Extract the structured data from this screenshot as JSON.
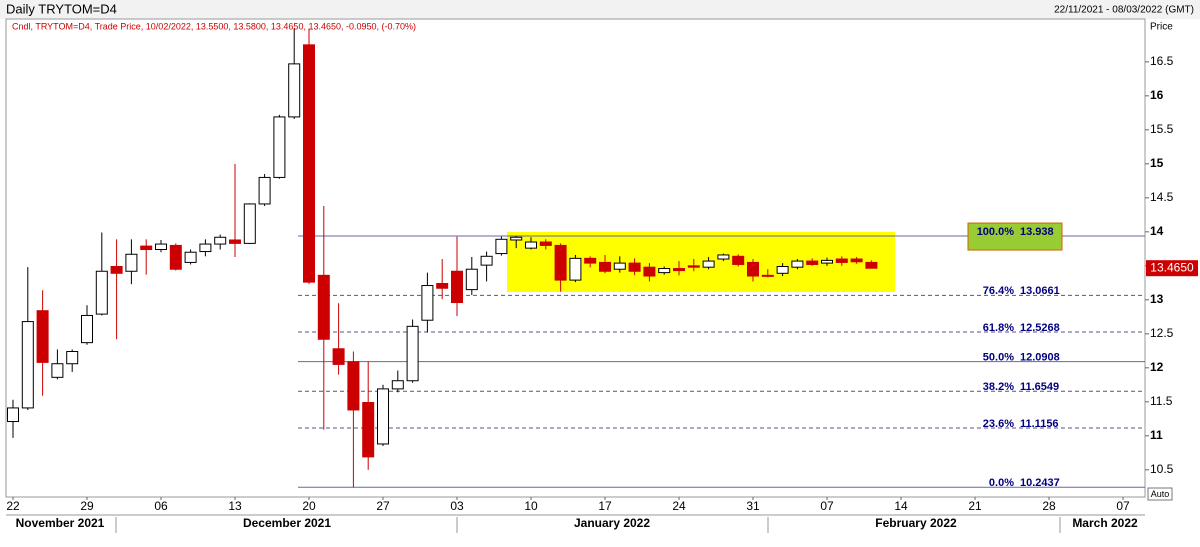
{
  "chart_data": {
    "type": "candlestick",
    "title": "Daily TRYTOM=D4",
    "date_range": "22/11/2021 - 08/03/2022 (GMT)",
    "legend_text": "Cndl, TRYTOM=D4, Trade Price, 10/02/2022, 13.5500, 13.5800, 13.4650, 13.4650, -0.0950, (-0.70%)",
    "y_axis_label": "Price",
    "scale_mode": "Auto",
    "categories": [
      "22",
      null,
      null,
      null,
      null,
      "29",
      null,
      null,
      null,
      null,
      "06",
      null,
      null,
      null,
      null,
      "13",
      null,
      null,
      null,
      null,
      "20",
      null,
      null,
      null,
      null,
      "27",
      null,
      null,
      null,
      null,
      "03",
      null,
      null,
      null,
      null,
      "10",
      null,
      null,
      null,
      null,
      "17",
      null,
      null,
      null,
      null,
      "24",
      null,
      null,
      null,
      null,
      "31",
      null,
      null,
      null,
      null,
      "07",
      null,
      null,
      null,
      null,
      "14",
      null,
      null,
      null,
      null,
      "21",
      null,
      null,
      null,
      null,
      "28",
      null,
      null,
      null,
      null,
      "07",
      null
    ],
    "months": [
      "November 2021",
      "December 2021",
      "January 2022",
      "February 2022",
      "March 2022"
    ],
    "up_color": "#ffffff",
    "down_color": "#cc0000",
    "open": [
      11.21,
      11.41,
      12.84,
      11.86,
      12.06,
      12.37,
      12.79,
      13.49,
      13.42,
      13.79,
      13.74,
      13.8,
      13.55,
      13.71,
      13.82,
      13.88,
      13.83,
      14.41,
      14.8,
      15.69,
      16.75,
      13.36,
      12.28,
      12.09,
      11.49,
      10.88,
      11.69,
      11.81,
      12.7,
      13.24,
      13.42,
      13.15,
      13.51,
      13.68,
      13.88,
      13.76,
      13.85,
      13.8,
      13.29,
      13.61,
      13.55,
      13.45,
      13.54,
      13.48,
      13.4,
      13.46,
      13.5,
      13.48,
      13.6,
      13.64,
      13.55,
      13.36,
      13.39,
      13.48,
      13.57,
      13.54,
      13.6,
      13.6,
      13.55,
      null,
      null,
      null,
      null,
      null,
      null,
      null,
      null,
      null,
      null,
      null,
      null,
      null,
      null,
      null,
      null,
      null,
      null
    ],
    "high": [
      11.53,
      13.48,
      13.14,
      12.27,
      12.27,
      12.92,
      13.99,
      13.89,
      13.89,
      13.89,
      13.88,
      13.83,
      13.74,
      13.89,
      13.96,
      15.0,
      14.42,
      14.85,
      15.72,
      16.99,
      16.99,
      14.38,
      12.95,
      12.24,
      12.09,
      11.75,
      11.96,
      12.71,
      13.4,
      13.6,
      13.93,
      13.63,
      13.71,
      13.93,
      13.938,
      13.92,
      13.89,
      13.83,
      13.66,
      13.64,
      13.66,
      13.64,
      13.61,
      13.54,
      13.49,
      13.57,
      13.6,
      13.63,
      13.68,
      13.67,
      13.6,
      13.45,
      13.54,
      13.6,
      13.61,
      13.62,
      13.64,
      13.63,
      13.58,
      null,
      null,
      null,
      null,
      null,
      null,
      null,
      null,
      null,
      null,
      null,
      null,
      null,
      null,
      null,
      null,
      null,
      null
    ],
    "low": [
      10.97,
      11.38,
      11.59,
      11.83,
      11.94,
      12.34,
      12.77,
      12.42,
      13.23,
      13.37,
      13.7,
      13.43,
      13.52,
      13.64,
      13.74,
      13.63,
      13.82,
      14.38,
      14.78,
      15.66,
      13.23,
      11.09,
      11.9,
      10.2437,
      10.5,
      10.85,
      11.64,
      11.78,
      12.52,
      13.01,
      12.76,
      13.07,
      13.27,
      13.65,
      13.76,
      13.74,
      13.74,
      13.12,
      13.26,
      13.48,
      13.39,
      13.4,
      13.36,
      13.27,
      13.37,
      13.36,
      13.42,
      13.45,
      13.57,
      13.49,
      13.27,
      13.33,
      13.35,
      13.45,
      13.5,
      13.5,
      13.5,
      13.53,
      13.465,
      null,
      null,
      null,
      null,
      null,
      null,
      null,
      null,
      null,
      null,
      null,
      null,
      null,
      null,
      null,
      null,
      null,
      null
    ],
    "close": [
      11.41,
      12.68,
      12.08,
      12.06,
      12.24,
      12.77,
      13.42,
      13.39,
      13.67,
      13.74,
      13.82,
      13.45,
      13.7,
      13.82,
      13.92,
      13.83,
      14.41,
      14.8,
      15.69,
      16.47,
      13.26,
      12.42,
      12.05,
      11.38,
      10.69,
      11.69,
      11.81,
      12.61,
      13.21,
      13.17,
      12.96,
      13.45,
      13.64,
      13.89,
      13.92,
      13.85,
      13.8,
      13.29,
      13.61,
      13.54,
      13.42,
      13.54,
      13.42,
      13.35,
      13.46,
      13.43,
      13.48,
      13.57,
      13.66,
      13.52,
      13.35,
      13.35,
      13.49,
      13.57,
      13.52,
      13.58,
      13.55,
      13.56,
      13.465,
      null,
      null,
      null,
      null,
      null,
      null,
      null,
      null,
      null,
      null,
      null,
      null,
      null,
      null,
      null,
      null,
      null,
      null
    ],
    "ylim": [
      10.1,
      17.13
    ],
    "yticks": [
      10.5,
      11,
      11.5,
      12,
      12.5,
      13,
      13.5,
      14,
      14.5,
      15,
      15.5,
      16,
      16.5
    ],
    "last_price": {
      "value": 13.465,
      "label": "13.4650"
    },
    "fibonacci": [
      {
        "label": "100.0%",
        "value": 13.938,
        "dashed": false
      },
      {
        "label": "76.4%",
        "value": 13.0661,
        "dashed": true
      },
      {
        "label": "61.8%",
        "value": 12.5268,
        "dashed": true
      },
      {
        "label": "50.0%",
        "value": 12.0908,
        "dashed": false
      },
      {
        "label": "38.2%",
        "value": 11.6549,
        "dashed": true
      },
      {
        "label": "23.6%",
        "value": 11.1156,
        "dashed": true
      },
      {
        "label": "0.0%",
        "value": 10.2437,
        "dashed": false
      }
    ]
  }
}
